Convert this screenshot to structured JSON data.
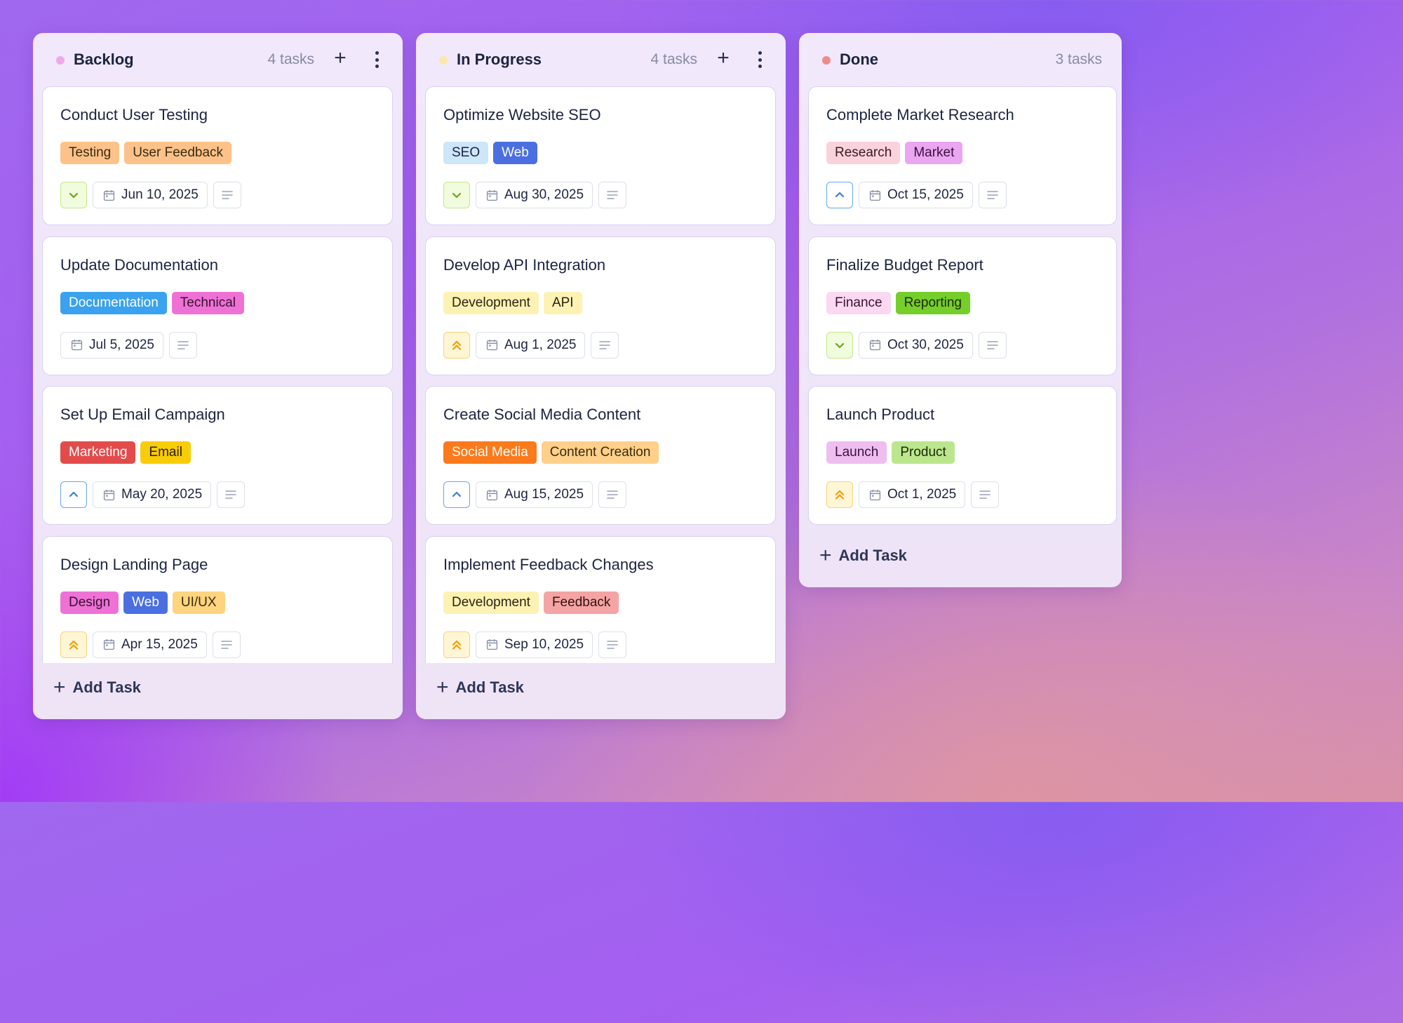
{
  "board": {
    "add_task_label": "Add Task",
    "columns": [
      {
        "title": "Backlog",
        "count": "4 tasks",
        "dot_color": "#f0a8e8",
        "cards": [
          {
            "title": "Conduct User Testing",
            "tags": [
              {
                "label": "Testing",
                "bg": "#fdc28a",
                "fg": "#3a2a10"
              },
              {
                "label": "User Feedback",
                "bg": "#fdc28a",
                "fg": "#3a2a10"
              }
            ],
            "priority": "low",
            "date": "Jun 10, 2025"
          },
          {
            "title": "Update Documentation",
            "tags": [
              {
                "label": "Documentation",
                "bg": "#3aa2ee",
                "fg": "#ffffff"
              },
              {
                "label": "Technical",
                "bg": "#ee72d6",
                "fg": "#3a1030"
              }
            ],
            "priority": "none",
            "date": "Jul 5, 2025"
          },
          {
            "title": "Set Up Email Campaign",
            "tags": [
              {
                "label": "Marketing",
                "bg": "#e34b4b",
                "fg": "#ffffff"
              },
              {
                "label": "Email",
                "bg": "#f9cc08",
                "fg": "#2a2000"
              }
            ],
            "priority": "medium",
            "date": "May 20, 2025"
          },
          {
            "title": "Design Landing Page",
            "tags": [
              {
                "label": "Design",
                "bg": "#ee72d6",
                "fg": "#3a1030"
              },
              {
                "label": "Web",
                "bg": "#4b6fe0",
                "fg": "#ffffff"
              },
              {
                "label": "UI/UX",
                "bg": "#fed47e",
                "fg": "#3a2a10"
              }
            ],
            "priority": "high",
            "date": "Apr 15, 2025"
          }
        ]
      },
      {
        "title": "In Progress",
        "count": "4 tasks",
        "dot_color": "#fbe7a8",
        "cards": [
          {
            "title": "Optimize Website SEO",
            "tags": [
              {
                "label": "SEO",
                "bg": "#cde6f8",
                "fg": "#1c2440"
              },
              {
                "label": "Web",
                "bg": "#4b6fe0",
                "fg": "#ffffff"
              }
            ],
            "priority": "low",
            "date": "Aug 30, 2025"
          },
          {
            "title": "Develop API Integration",
            "tags": [
              {
                "label": "Development",
                "bg": "#fdf2b4",
                "fg": "#2a2410"
              },
              {
                "label": "API",
                "bg": "#fdf2b4",
                "fg": "#2a2410"
              }
            ],
            "priority": "high",
            "date": "Aug 1, 2025"
          },
          {
            "title": "Create Social Media Content",
            "tags": [
              {
                "label": "Social Media",
                "bg": "#fb7a1c",
                "fg": "#ffffff"
              },
              {
                "label": "Content Creation",
                "bg": "#fed08a",
                "fg": "#3a2a10"
              }
            ],
            "priority": "medium",
            "date": "Aug 15, 2025"
          },
          {
            "title": "Implement Feedback Changes",
            "tags": [
              {
                "label": "Development",
                "bg": "#fdf2b4",
                "fg": "#2a2410"
              },
              {
                "label": "Feedback",
                "bg": "#f4a4a4",
                "fg": "#3a1010"
              }
            ],
            "priority": "high",
            "date": "Sep 10, 2025"
          }
        ]
      },
      {
        "title": "Done",
        "count": "3 tasks",
        "dot_color": "#f08a8a",
        "cards": [
          {
            "title": "Complete Market Research",
            "tags": [
              {
                "label": "Research",
                "bg": "#fad2dc",
                "fg": "#3a1a22"
              },
              {
                "label": "Market",
                "bg": "#eaa6f0",
                "fg": "#3a1040"
              }
            ],
            "priority": "medium",
            "date": "Oct 15, 2025"
          },
          {
            "title": "Finalize Budget Report",
            "tags": [
              {
                "label": "Finance",
                "bg": "#fcd8f2",
                "fg": "#3a1030"
              },
              {
                "label": "Reporting",
                "bg": "#76ce2a",
                "fg": "#1a2a08"
              }
            ],
            "priority": "low",
            "date": "Oct 30, 2025"
          },
          {
            "title": "Launch Product",
            "tags": [
              {
                "label": "Launch",
                "bg": "#eebef0",
                "fg": "#3a1040"
              },
              {
                "label": "Product",
                "bg": "#bce68e",
                "fg": "#1a2a08"
              }
            ],
            "priority": "high",
            "date": "Oct 1, 2025"
          }
        ]
      }
    ]
  }
}
